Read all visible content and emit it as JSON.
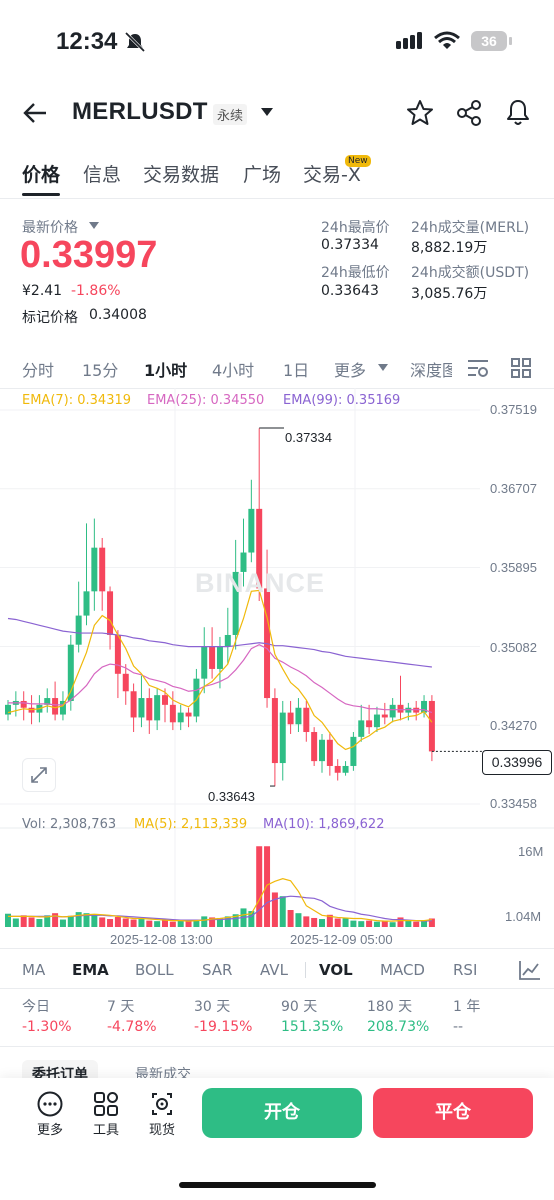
{
  "status": {
    "time": "12:34",
    "battery": "36"
  },
  "header": {
    "symbol": "MERLUSDT",
    "contract_type": "永续"
  },
  "tabs": [
    {
      "label": "价格",
      "active": true
    },
    {
      "label": "信息"
    },
    {
      "label": "交易数据"
    },
    {
      "label": "广场"
    },
    {
      "label": "交易-X",
      "badge": "New"
    }
  ],
  "price": {
    "latest_label": "最新价格",
    "last": "0.33997",
    "cny": "¥2.41",
    "change_pct": "-1.86%",
    "mark_label": "标记价格",
    "mark_value": "0.34008"
  },
  "stats": {
    "high_label": "24h最高价",
    "high_value": "0.37334",
    "vol_label": "24h成交量(MERL)",
    "vol_value": "8,882.19万",
    "low_label": "24h最低价",
    "low_value": "0.33643",
    "turnover_label": "24h成交额(USDT)",
    "turnover_value": "3,085.76万"
  },
  "intervals": [
    "分时",
    "15分",
    "1小时",
    "4小时",
    "1日",
    "更多",
    "深度图"
  ],
  "active_interval": "1小时",
  "ema": {
    "ema7": "EMA(7): 0.34319",
    "ema25": "EMA(25): 0.34550",
    "ema99": "EMA(99): 0.35169"
  },
  "colors": {
    "up": "#2ebd85",
    "down": "#f6465d",
    "ema7": "#f0b90b",
    "ema25": "#d667c1",
    "ema99": "#8a63d2"
  },
  "watermark": "BINANCE",
  "chart_data": {
    "type": "candlestick",
    "y_ticks": [
      "0.37519",
      "0.36707",
      "0.35895",
      "0.35082",
      "0.34270",
      "0.33458"
    ],
    "ylim": [
      0.33458,
      0.37519
    ],
    "high_label": "0.37334",
    "low_label": "0.33643",
    "current_price_tag": "0.33996",
    "x_labels": [
      "2025-12-08 13:00",
      "2025-12-09 05:00"
    ],
    "candles": [
      [
        0.3438,
        0.3448,
        0.3432,
        0.3453
      ],
      [
        0.3448,
        0.3452,
        0.3436,
        0.3462
      ],
      [
        0.3452,
        0.3445,
        0.3432,
        0.3462
      ],
      [
        0.3445,
        0.344,
        0.3428,
        0.3458
      ],
      [
        0.344,
        0.3448,
        0.343,
        0.3458
      ],
      [
        0.3448,
        0.3455,
        0.344,
        0.3465
      ],
      [
        0.3455,
        0.3438,
        0.3432,
        0.3472
      ],
      [
        0.3438,
        0.3452,
        0.3432,
        0.3462
      ],
      [
        0.3452,
        0.351,
        0.3442,
        0.352
      ],
      [
        0.351,
        0.354,
        0.3502,
        0.3575
      ],
      [
        0.354,
        0.3565,
        0.353,
        0.3635
      ],
      [
        0.3565,
        0.361,
        0.3545,
        0.364
      ],
      [
        0.361,
        0.3565,
        0.3545,
        0.362
      ],
      [
        0.3565,
        0.352,
        0.3505,
        0.357
      ],
      [
        0.352,
        0.348,
        0.3455,
        0.3525
      ],
      [
        0.348,
        0.3462,
        0.3448,
        0.349
      ],
      [
        0.3462,
        0.3435,
        0.342,
        0.347
      ],
      [
        0.3435,
        0.3455,
        0.3425,
        0.3478
      ],
      [
        0.3455,
        0.3432,
        0.3418,
        0.3465
      ],
      [
        0.3432,
        0.3458,
        0.3422,
        0.3465
      ],
      [
        0.3458,
        0.3448,
        0.343,
        0.3465
      ],
      [
        0.3448,
        0.343,
        0.3422,
        0.3462
      ],
      [
        0.343,
        0.344,
        0.3422,
        0.3448
      ],
      [
        0.344,
        0.3436,
        0.3425,
        0.3445
      ],
      [
        0.3436,
        0.3475,
        0.343,
        0.3485
      ],
      [
        0.3475,
        0.3508,
        0.346,
        0.3528
      ],
      [
        0.3508,
        0.3485,
        0.3475,
        0.3528
      ],
      [
        0.3485,
        0.3508,
        0.3465,
        0.3518
      ],
      [
        0.3508,
        0.352,
        0.349,
        0.3548
      ],
      [
        0.352,
        0.3585,
        0.3505,
        0.3618
      ],
      [
        0.3585,
        0.3605,
        0.357,
        0.364
      ],
      [
        0.3605,
        0.365,
        0.3595,
        0.368
      ],
      [
        0.365,
        0.3568,
        0.3555,
        0.3733
      ],
      [
        0.3568,
        0.3455,
        0.3445,
        0.3608
      ],
      [
        0.3455,
        0.3388,
        0.3364,
        0.3465
      ],
      [
        0.3388,
        0.344,
        0.337,
        0.3452
      ],
      [
        0.344,
        0.3428,
        0.3418,
        0.3452
      ],
      [
        0.3428,
        0.3445,
        0.342,
        0.3455
      ],
      [
        0.3445,
        0.342,
        0.341,
        0.3452
      ],
      [
        0.342,
        0.339,
        0.3385,
        0.3425
      ],
      [
        0.339,
        0.3412,
        0.3378,
        0.3418
      ],
      [
        0.3412,
        0.3385,
        0.3375,
        0.342
      ],
      [
        0.3385,
        0.3378,
        0.337,
        0.3392
      ],
      [
        0.3378,
        0.3385,
        0.3375,
        0.339
      ],
      [
        0.3385,
        0.3415,
        0.338,
        0.342
      ],
      [
        0.3415,
        0.3432,
        0.341,
        0.3448
      ],
      [
        0.3432,
        0.3425,
        0.3418,
        0.3448
      ],
      [
        0.3425,
        0.3438,
        0.342,
        0.3446
      ],
      [
        0.3438,
        0.3435,
        0.3428,
        0.345
      ],
      [
        0.3435,
        0.3448,
        0.343,
        0.3455
      ],
      [
        0.3448,
        0.344,
        0.3432,
        0.3478
      ],
      [
        0.344,
        0.3445,
        0.3432,
        0.345
      ],
      [
        0.3445,
        0.344,
        0.3432,
        0.3452
      ],
      [
        0.344,
        0.3452,
        0.3435,
        0.3458
      ],
      [
        0.3452,
        0.34,
        0.339,
        0.3458
      ]
    ],
    "ema7_values": [
      0.344,
      0.3442,
      0.3444,
      0.3443,
      0.3444,
      0.3447,
      0.3445,
      0.3447,
      0.3462,
      0.3482,
      0.3502,
      0.353,
      0.354,
      0.3535,
      0.352,
      0.3506,
      0.3488,
      0.348,
      0.3468,
      0.3465,
      0.3461,
      0.3453,
      0.3449,
      0.3446,
      0.3453,
      0.3467,
      0.3472,
      0.3481,
      0.349,
      0.3514,
      0.3537,
      0.3565,
      0.3566,
      0.3538,
      0.35,
      0.3485,
      0.3471,
      0.3464,
      0.3453,
      0.3437,
      0.343,
      0.3419,
      0.3408,
      0.3402,
      0.3405,
      0.3412,
      0.3416,
      0.3422,
      0.3425,
      0.3431,
      0.3433,
      0.3436,
      0.3437,
      0.3441,
      0.343
    ],
    "ema25_values": [
      0.345,
      0.345,
      0.345,
      0.3449,
      0.3449,
      0.3449,
      0.3448,
      0.3448,
      0.3453,
      0.346,
      0.3468,
      0.348,
      0.3487,
      0.349,
      0.3489,
      0.3486,
      0.3481,
      0.3479,
      0.3475,
      0.3473,
      0.3471,
      0.3467,
      0.3465,
      0.3462,
      0.3463,
      0.3467,
      0.3469,
      0.3472,
      0.3476,
      0.3484,
      0.3494,
      0.3506,
      0.351,
      0.3506,
      0.3496,
      0.3492,
      0.3487,
      0.3483,
      0.3478,
      0.3471,
      0.3466,
      0.346,
      0.3454,
      0.3449,
      0.3447,
      0.3446,
      0.3444,
      0.3444,
      0.3443,
      0.3443,
      0.3443,
      0.3443,
      0.3443,
      0.3443,
      0.344
    ],
    "ema99_values": [
      0.3537,
      0.3536,
      0.3534,
      0.3532,
      0.353,
      0.3528,
      0.3526,
      0.3524,
      0.3523,
      0.3522,
      0.3522,
      0.3522,
      0.3522,
      0.3521,
      0.352,
      0.3519,
      0.3517,
      0.3516,
      0.3514,
      0.3513,
      0.3512,
      0.351,
      0.3509,
      0.3508,
      0.3508,
      0.3508,
      0.3508,
      0.3508,
      0.3508,
      0.3509,
      0.351,
      0.3511,
      0.3512,
      0.3511,
      0.3509,
      0.3509,
      0.3508,
      0.3507,
      0.3506,
      0.3505,
      0.3503,
      0.3502,
      0.35,
      0.3498,
      0.3497,
      0.3496,
      0.3495,
      0.3494,
      0.3493,
      0.3492,
      0.3491,
      0.349,
      0.3489,
      0.3488,
      0.3487
    ],
    "volume": {
      "label": "Vol: 2,308,763",
      "ma5": "MA(5): 2,113,339",
      "ma10": "MA(10): 1,869,622",
      "y_ticks": [
        "16M",
        "1.04M"
      ],
      "ylim": [
        0,
        16
      ],
      "values": [
        2.5,
        1.6,
        2.2,
        1.8,
        1.5,
        2.2,
        2.6,
        1.4,
        2.1,
        2.8,
        2.6,
        2.4,
        1.8,
        1.5,
        1.9,
        1.6,
        1.4,
        1.5,
        1.2,
        1.1,
        1.3,
        1.0,
        1.2,
        1.1,
        1.4,
        2.0,
        1.8,
        1.7,
        2.0,
        2.4,
        3.5,
        3.0,
        15.2,
        15.2,
        6.5,
        5.8,
        3.2,
        2.6,
        2.0,
        1.7,
        1.5,
        2.3,
        1.6,
        1.6,
        1.2,
        1.1,
        1.2,
        1.0,
        1.1,
        0.9,
        1.8,
        1.3,
        1.0,
        1.2,
        1.6
      ],
      "ma5_values": [
        2.0,
        2.0,
        2.0,
        2.0,
        1.9,
        1.9,
        2.1,
        1.9,
        2.0,
        2.2,
        2.3,
        2.4,
        2.3,
        2.2,
        2.0,
        1.8,
        1.6,
        1.6,
        1.5,
        1.4,
        1.3,
        1.2,
        1.2,
        1.1,
        1.2,
        1.3,
        1.5,
        1.6,
        1.8,
        2.0,
        2.3,
        2.5,
        5.1,
        7.9,
        8.6,
        9.1,
        8.7,
        6.7,
        4.0,
        3.1,
        2.2,
        2.0,
        1.8,
        1.7,
        1.6,
        1.6,
        1.4,
        1.2,
        1.1,
        1.1,
        1.2,
        1.2,
        1.2,
        1.2,
        1.4
      ],
      "ma10_values": [
        2.0,
        2.0,
        2.0,
        2.0,
        2.0,
        2.0,
        2.0,
        1.9,
        2.0,
        2.1,
        2.2,
        2.2,
        2.2,
        2.1,
        2.1,
        2.0,
        1.9,
        1.8,
        1.7,
        1.6,
        1.5,
        1.4,
        1.3,
        1.3,
        1.3,
        1.3,
        1.4,
        1.4,
        1.5,
        1.6,
        1.8,
        2.0,
        3.2,
        4.6,
        5.2,
        5.6,
        5.8,
        5.7,
        5.5,
        5.4,
        4.9,
        3.9,
        3.4,
        3.0,
        2.8,
        2.4,
        2.2,
        1.9,
        1.6,
        1.4,
        1.4,
        1.3,
        1.2,
        1.1,
        1.2
      ]
    }
  },
  "indicators": [
    "MA",
    "EMA",
    "BOLL",
    "SAR",
    "AVL",
    "VOL",
    "MACD",
    "RSI"
  ],
  "active_indicators": [
    "EMA",
    "VOL"
  ],
  "performance": [
    {
      "period": "今日",
      "value": "-1.30%",
      "dir": "down"
    },
    {
      "period": "7 天",
      "value": "-4.78%",
      "dir": "down"
    },
    {
      "period": "30 天",
      "value": "-19.15%",
      "dir": "down"
    },
    {
      "period": "90 天",
      "value": "151.35%",
      "dir": "up"
    },
    {
      "period": "180 天",
      "value": "208.73%",
      "dir": "up"
    },
    {
      "period": "1 年",
      "value": "--",
      "dir": "none"
    }
  ],
  "orderbook_tabs": [
    "委托订单",
    "最新成交"
  ],
  "bottom": {
    "more": "更多",
    "tools": "工具",
    "spot": "现货",
    "open": "开仓",
    "close": "平仓"
  }
}
